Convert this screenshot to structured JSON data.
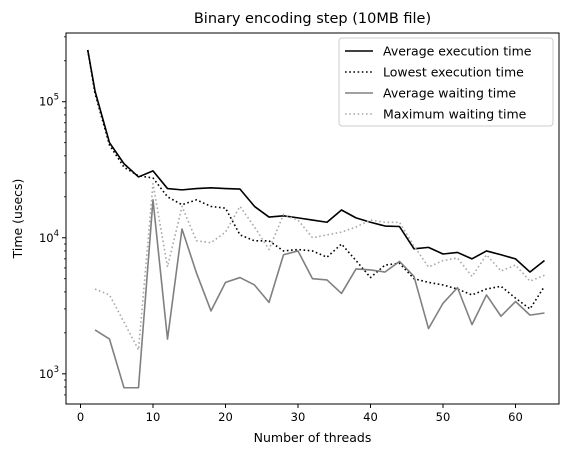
{
  "chart_data": {
    "type": "line",
    "title": "Binary encoding step (10MB file)",
    "xlabel": "Number of threads",
    "ylabel": "Time (usecs)",
    "xlim": [
      -2,
      66
    ],
    "ylim": [
      600,
      320000
    ],
    "yscale": "log",
    "xticks": [
      0,
      10,
      20,
      30,
      40,
      50,
      60
    ],
    "yticks": [
      {
        "value": 1000,
        "base": "10",
        "exp": "3"
      },
      {
        "value": 10000,
        "base": "10",
        "exp": "4"
      },
      {
        "value": 100000,
        "base": "10",
        "exp": "5"
      }
    ],
    "legend_position": "top-right",
    "grid": false,
    "x": [
      1,
      2,
      4,
      6,
      8,
      10,
      12,
      14,
      16,
      18,
      20,
      22,
      24,
      26,
      28,
      30,
      32,
      34,
      36,
      38,
      40,
      42,
      44,
      46,
      48,
      50,
      52,
      54,
      56,
      58,
      60,
      62,
      64
    ],
    "series": [
      {
        "name": "Average execution time",
        "color": "#000000",
        "dash": "solid",
        "values": [
          240000,
          120000,
          50000,
          35000,
          28000,
          31000,
          23000,
          22500,
          23000,
          23300,
          23000,
          22800,
          17000,
          14200,
          14500,
          14000,
          13500,
          13000,
          16000,
          14000,
          13000,
          12200,
          12100,
          8300,
          8500,
          7600,
          7800,
          7000,
          8000,
          7500,
          7000,
          5600,
          6800
        ]
      },
      {
        "name": "Lowest execution time",
        "color": "#000000",
        "dash": "dotted",
        "values": [
          240000,
          115000,
          48000,
          33000,
          28500,
          27500,
          20000,
          17500,
          19000,
          17000,
          16500,
          10500,
          9500,
          9500,
          8000,
          8200,
          8000,
          7200,
          9000,
          6800,
          5100,
          6300,
          6500,
          5000,
          4700,
          4500,
          4200,
          3800,
          4200,
          4400,
          3600,
          3000,
          4400
        ]
      },
      {
        "name": "Average waiting time",
        "color": "#808080",
        "dash": "solid",
        "values": [
          null,
          2100,
          1800,
          790,
          790,
          19000,
          1800,
          11600,
          5500,
          2900,
          4700,
          5100,
          4500,
          3350,
          7500,
          8000,
          5000,
          4900,
          3900,
          5900,
          5800,
          5600,
          6700,
          5200,
          2150,
          3300,
          4300,
          2300,
          3800,
          2650,
          3400,
          2700,
          2800
        ]
      },
      {
        "name": "Maximum waiting time",
        "color": "#a9a9a9",
        "dash": "dotted",
        "values": [
          null,
          4200,
          3800,
          2400,
          1500,
          25000,
          6100,
          17000,
          9500,
          9200,
          11000,
          17000,
          12000,
          8200,
          14800,
          13500,
          10000,
          10500,
          11000,
          12000,
          13500,
          13000,
          13000,
          8700,
          6100,
          6800,
          7100,
          5200,
          7500,
          5700,
          6300,
          4800,
          5300
        ]
      }
    ]
  }
}
